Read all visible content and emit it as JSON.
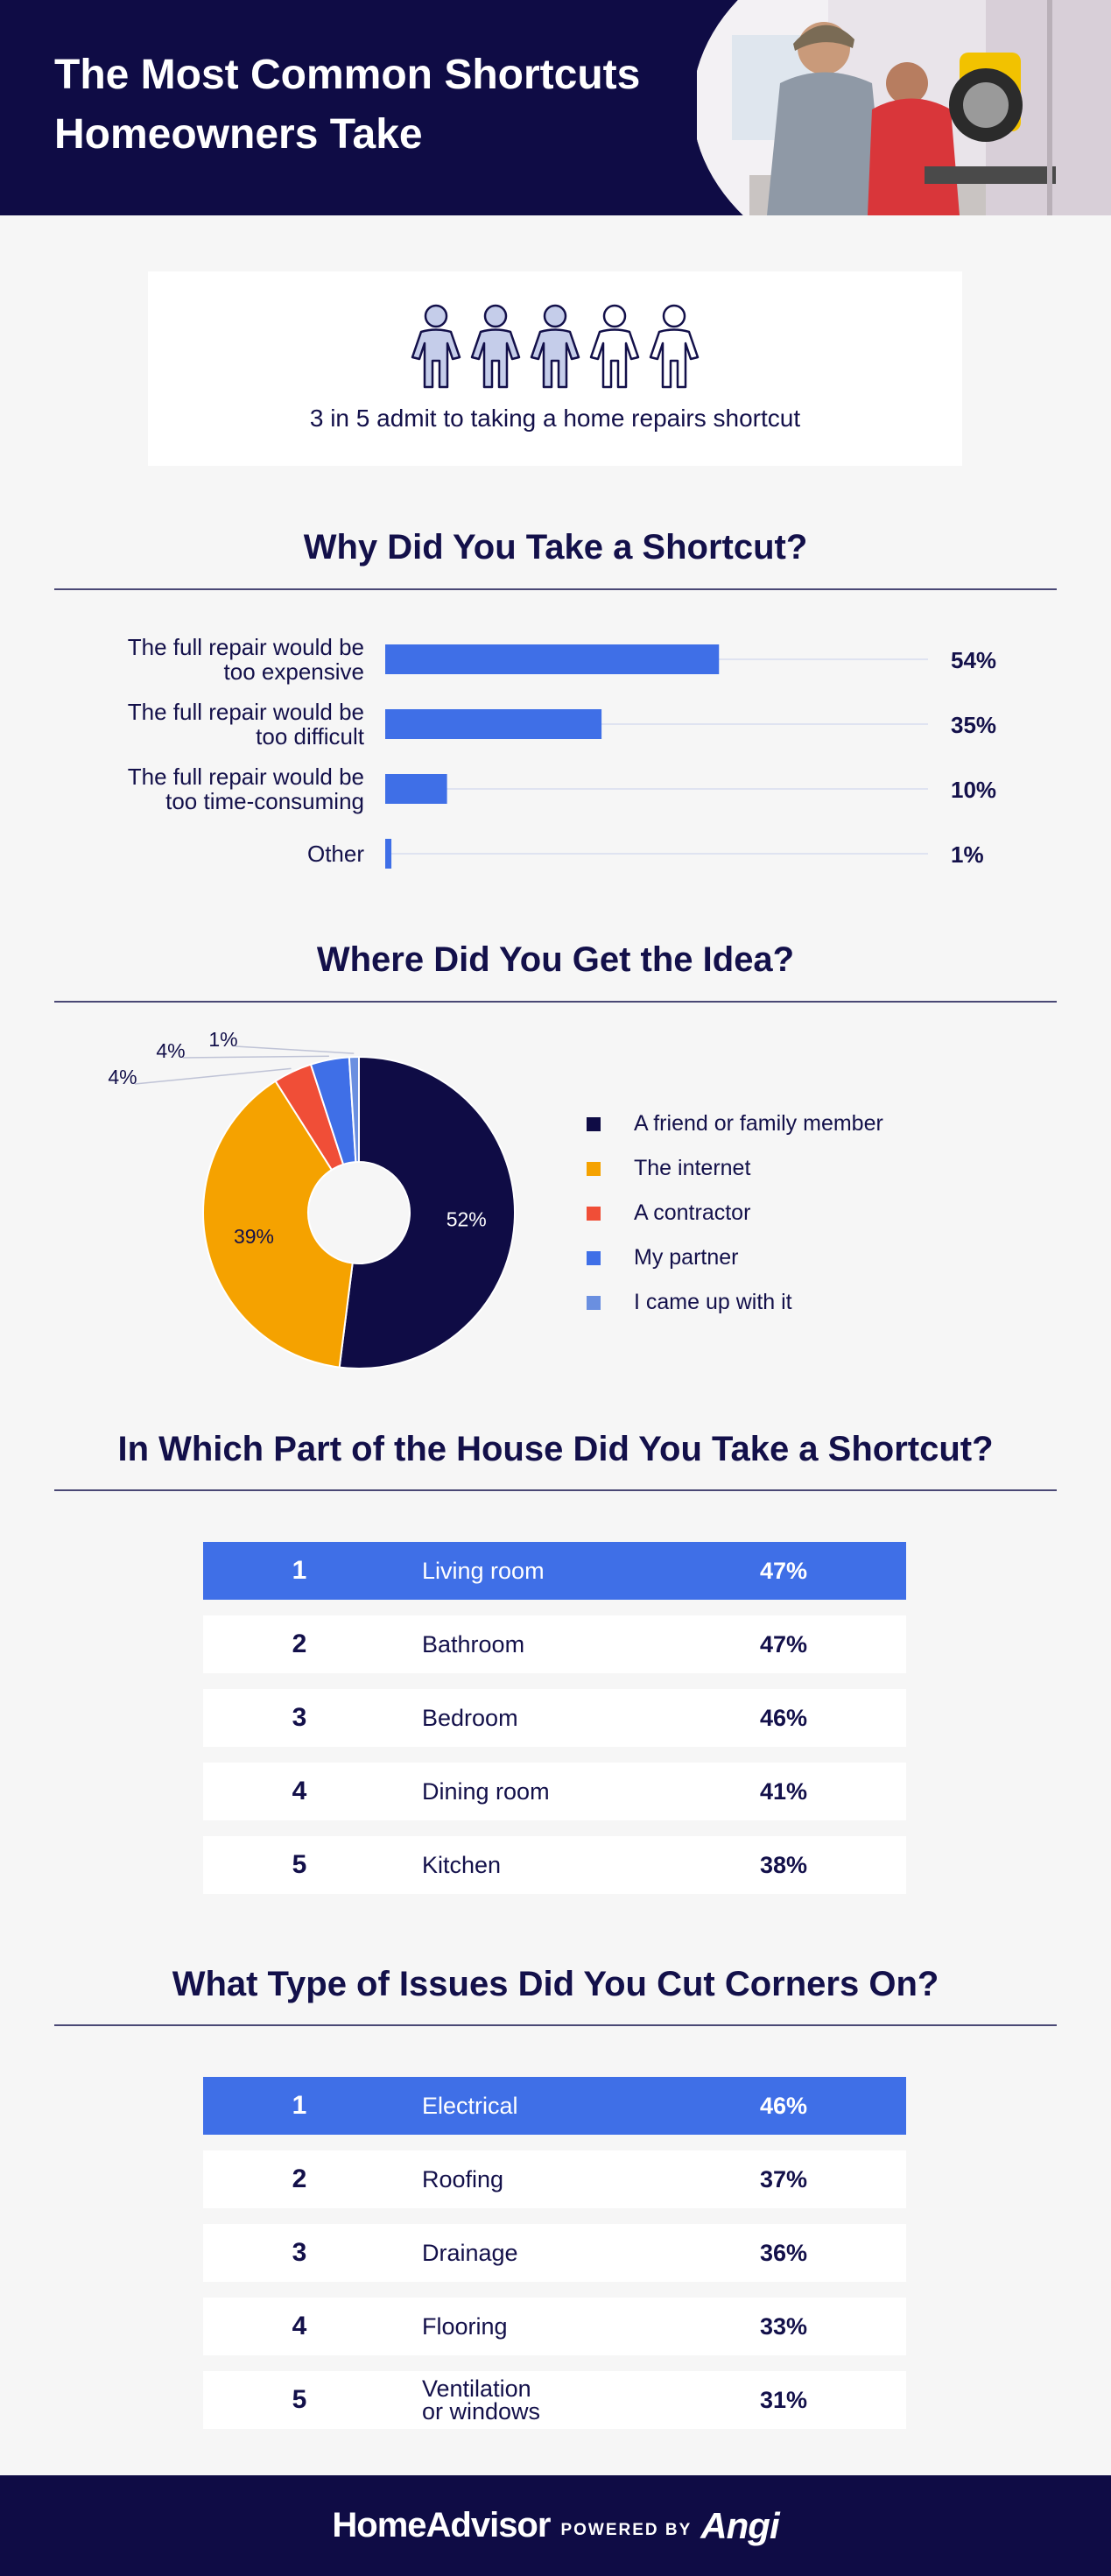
{
  "header": {
    "title_line1": "The Most Common Shortcuts",
    "title_line2": "Homeowners Take"
  },
  "people_stat": {
    "caption": "3 in 5 admit to taking a home repairs shortcut",
    "filled": 3,
    "total": 5,
    "filled_color": "#c5cdea",
    "empty_color": "#ffffff",
    "outline_color": "#13104a"
  },
  "sections": {
    "why": "Why Did You Take a Shortcut?",
    "where": "Where Did You Get the Idea?",
    "part": "In Which Part of the House Did You Take a Shortcut?",
    "issues": "What Type of Issues Did You Cut Corners On?"
  },
  "colors": {
    "navy": "#0f0c45",
    "blue": "#3f6fe7",
    "orange": "#f5a200",
    "red": "#f04e37",
    "light_blue": "#6a8fe0",
    "track": "#dfe3f1"
  },
  "chart_data": [
    {
      "type": "bar",
      "orientation": "horizontal",
      "title": "Why Did You Take a Shortcut?",
      "categories": [
        [
          "The full repair would be",
          "too expensive"
        ],
        [
          "The full repair would be",
          "too difficult"
        ],
        [
          "The full repair would be",
          "too time-consuming"
        ],
        [
          "Other"
        ]
      ],
      "values": [
        54,
        35,
        10,
        1
      ],
      "value_labels": [
        "54%",
        "35%",
        "10%",
        "1%"
      ],
      "xlim": [
        0,
        100
      ],
      "color": "#3f6fe7"
    },
    {
      "type": "pie",
      "style": "donut",
      "title": "Where Did You Get the Idea?",
      "slices": [
        {
          "name": "A friend or family member",
          "value": 52,
          "label": "52%",
          "color": "#0f0c45"
        },
        {
          "name": "The internet",
          "value": 39,
          "label": "39%",
          "color": "#f5a200"
        },
        {
          "name": "A contractor",
          "value": 4,
          "label": "4%",
          "color": "#f04e37"
        },
        {
          "name": "My partner",
          "value": 4,
          "label": "4%",
          "color": "#3f6fe7"
        },
        {
          "name": "I came up with it",
          "value": 1,
          "label": "1%",
          "color": "#6a8fe0"
        }
      ],
      "legend_placement": "right"
    },
    {
      "type": "table",
      "title": "In Which Part of the House Did You Take a Shortcut?",
      "rows": [
        {
          "rank": "1",
          "label": "Living room",
          "value": "47%"
        },
        {
          "rank": "2",
          "label": "Bathroom",
          "value": "47%"
        },
        {
          "rank": "3",
          "label": "Bedroom",
          "value": "46%"
        },
        {
          "rank": "4",
          "label": "Dining room",
          "value": "41%"
        },
        {
          "rank": "5",
          "label": "Kitchen",
          "value": "38%"
        }
      ]
    },
    {
      "type": "table",
      "title": "What Type of Issues Did You Cut Corners On?",
      "rows": [
        {
          "rank": "1",
          "label": "Electrical",
          "value": "46%"
        },
        {
          "rank": "2",
          "label": "Roofing",
          "value": "37%"
        },
        {
          "rank": "3",
          "label": "Drainage",
          "value": "36%"
        },
        {
          "rank": "4",
          "label": "Flooring",
          "value": "33%"
        },
        {
          "rank": "5",
          "label": "Ventilation or windows",
          "value": "31%"
        }
      ]
    }
  ],
  "footer": {
    "brand": "HomeAdvisor",
    "powered_by": "POWERED BY",
    "partner": "Angi"
  }
}
